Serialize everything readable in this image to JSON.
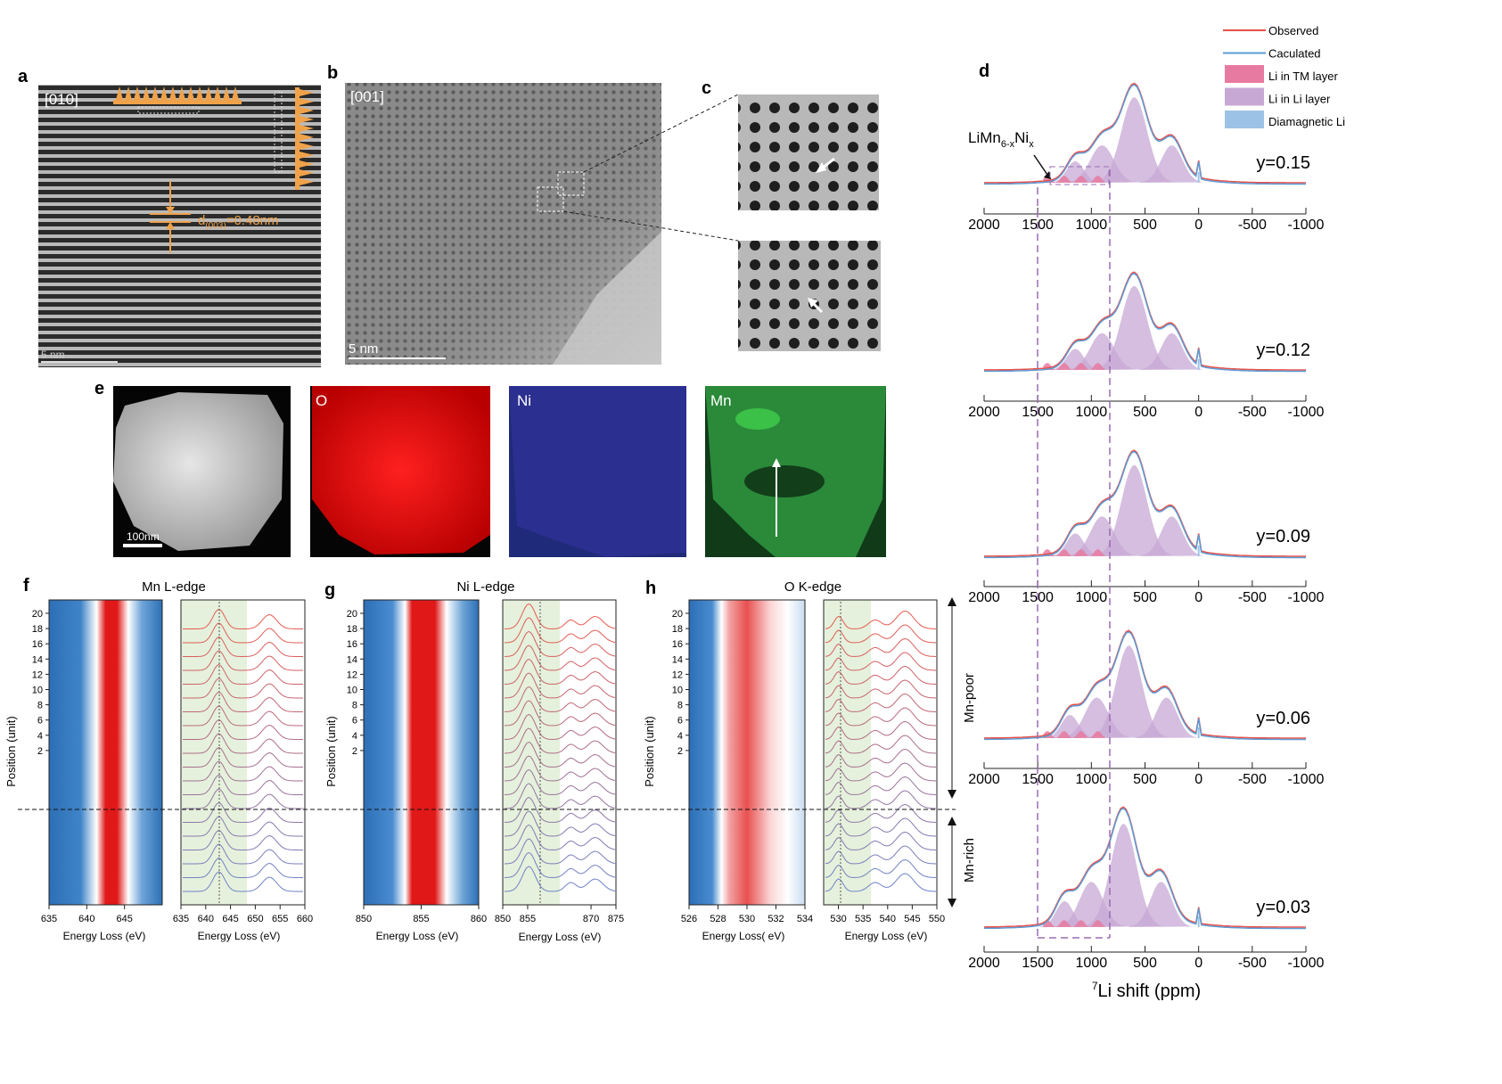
{
  "panel_letters": [
    "a",
    "b",
    "c",
    "d",
    "e",
    "f",
    "g",
    "h"
  ],
  "a": {
    "zone_axis": "[010]",
    "d_spacing_text": "d",
    "d_spacing_sub": "(003)",
    "d_spacing_value": "=0.48nm",
    "scale_bar": "5 nm"
  },
  "b": {
    "zone_axis": "[001]",
    "scale_bar": "5 nm"
  },
  "e": {
    "labels": [
      "O",
      "Ni",
      "Mn"
    ],
    "scale_bar": "100nm"
  },
  "d": {
    "legend": [
      "Observed",
      "Caculated",
      "Li in TM layer",
      "Li in Li layer",
      "Diamagnetic Li"
    ],
    "colors": {
      "observed": "#e8504a",
      "calculated": "#5b9bd5",
      "li_tm": "#e77aa0",
      "li_li": "#c7a8d4",
      "diamagnetic": "#9cc3e5"
    },
    "annotation_main": "LiMn",
    "annotation_sub1": "6-x",
    "annotation_mid": "Ni",
    "annotation_sub2": "x",
    "x_ticks": [
      "2000",
      "1500",
      "1000",
      "500",
      "0",
      "-500",
      "-1000"
    ],
    "xlabel_sup": "7",
    "xlabel": "Li shift (ppm)",
    "spectra": [
      "y=0.15",
      "y=0.12",
      "y=0.09",
      "y=0.06",
      "y=0.03"
    ],
    "side_labels": [
      "Mn-poor",
      "Mn-rich"
    ]
  },
  "f": {
    "title": "Mn L-edge",
    "map_ticks": [
      "635",
      "640",
      "645"
    ],
    "spec_ticks": [
      "635",
      "640",
      "645",
      "650",
      "655",
      "660"
    ],
    "xlabel": "Energy Loss (eV)"
  },
  "g": {
    "title": "Ni L-edge",
    "map_ticks": [
      "850",
      "855",
      "860"
    ],
    "spec_ticks": [
      "850",
      "855",
      "870",
      "875"
    ],
    "xlabel": "Energy Loss (eV)"
  },
  "h": {
    "title": "O K-edge",
    "map_ticks": [
      "526",
      "528",
      "530",
      "532",
      "534"
    ],
    "spec_ticks": [
      "530",
      "535",
      "540",
      "545",
      "550"
    ],
    "xlabel_map": "Energy Loss( eV)",
    "xlabel_spec": "Energy Loss (eV)"
  },
  "position_axis": {
    "label": "Position (unit)",
    "ticks": [
      "20",
      "18",
      "16",
      "14",
      "12",
      "10",
      "8",
      "6",
      "4",
      "2"
    ]
  }
}
